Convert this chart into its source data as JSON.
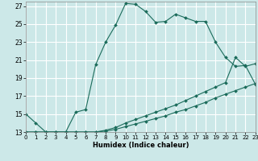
{
  "xlabel": "Humidex (Indice chaleur)",
  "bg_color": "#cce8e8",
  "grid_color": "#ffffff",
  "line_color": "#1a6b5a",
  "xlim": [
    0,
    23
  ],
  "ylim": [
    13,
    27.5
  ],
  "yticks": [
    13,
    15,
    17,
    19,
    21,
    23,
    25,
    27
  ],
  "xticks": [
    0,
    1,
    2,
    3,
    4,
    5,
    6,
    7,
    8,
    9,
    10,
    11,
    12,
    13,
    14,
    15,
    16,
    17,
    18,
    19,
    20,
    21,
    22,
    23
  ],
  "series": [
    {
      "x": [
        0,
        1,
        2,
        3,
        4,
        5,
        6,
        7,
        8,
        9,
        10,
        11,
        12,
        13,
        14,
        15,
        16,
        17,
        18,
        19,
        20,
        21,
        22,
        23
      ],
      "y": [
        15,
        14,
        13,
        13,
        13,
        15.2,
        15.5,
        20.5,
        23.0,
        24.9,
        27.3,
        27.2,
        26.4,
        25.2,
        25.3,
        26.1,
        25.7,
        25.3,
        25.3,
        23.0,
        21.3,
        20.3,
        20.4,
        18.3
      ],
      "linestyle": "-"
    },
    {
      "x": [
        0,
        1,
        2,
        3,
        4,
        5,
        6,
        7,
        8,
        9,
        10,
        11,
        12,
        13,
        14,
        15,
        16,
        17,
        18,
        19,
        20,
        21,
        22,
        23
      ],
      "y": [
        13,
        13,
        13,
        13,
        13,
        13,
        13,
        13,
        13.2,
        13.5,
        14.0,
        14.4,
        14.8,
        15.2,
        15.6,
        16.0,
        16.5,
        17.0,
        17.5,
        18.0,
        18.5,
        21.3,
        20.3,
        20.6
      ],
      "linestyle": "-"
    },
    {
      "x": [
        0,
        1,
        2,
        3,
        4,
        5,
        6,
        7,
        8,
        9,
        10,
        11,
        12,
        13,
        14,
        15,
        16,
        17,
        18,
        19,
        20,
        21,
        22,
        23
      ],
      "y": [
        13,
        13,
        13,
        13,
        13,
        13,
        13,
        13,
        13.1,
        13.3,
        13.6,
        13.9,
        14.2,
        14.5,
        14.8,
        15.2,
        15.5,
        15.9,
        16.3,
        16.8,
        17.2,
        17.6,
        18.0,
        18.4
      ],
      "linestyle": "-"
    }
  ]
}
